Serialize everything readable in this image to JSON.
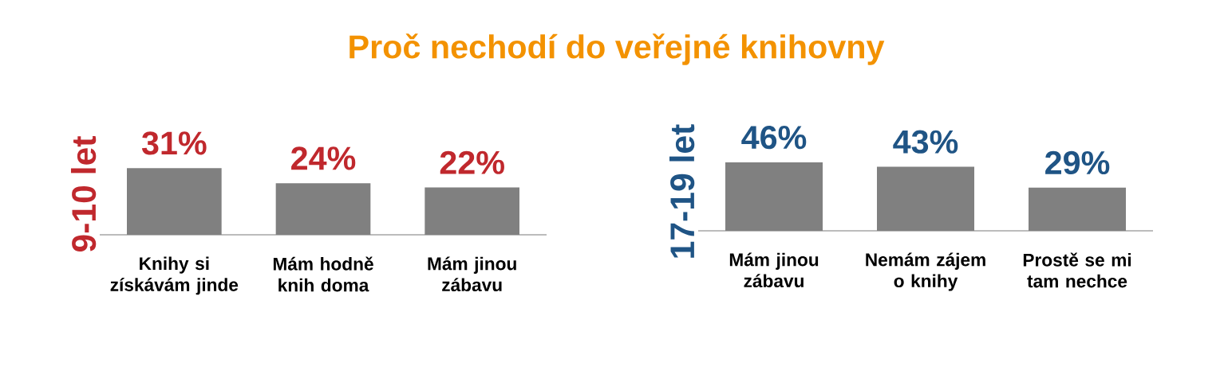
{
  "chart_data": [
    {
      "type": "bar",
      "title": "Proč nechodí do veřejné knihovny",
      "ylabel": "9-10 let",
      "categories": [
        "Knihy si získávám jinde",
        "Mám hodně knih doma",
        "Mám jinou zábavu"
      ],
      "series": [
        {
          "color": "#808080",
          "values": [
            31,
            24,
            22
          ],
          "value_labels": [
            "31%",
            "24%",
            "22%"
          ]
        }
      ]
    },
    {
      "type": "bar",
      "ylabel": "17-19 let",
      "categories": [
        "Mám jinou zábavu",
        "Nemám zájem o knihy",
        "Prostě se mi tam nechce"
      ],
      "series": [
        {
          "color": "#808080",
          "values": [
            46,
            43,
            29
          ],
          "value_labels": [
            "46%",
            "43%",
            "29%"
          ]
        }
      ]
    }
  ]
}
